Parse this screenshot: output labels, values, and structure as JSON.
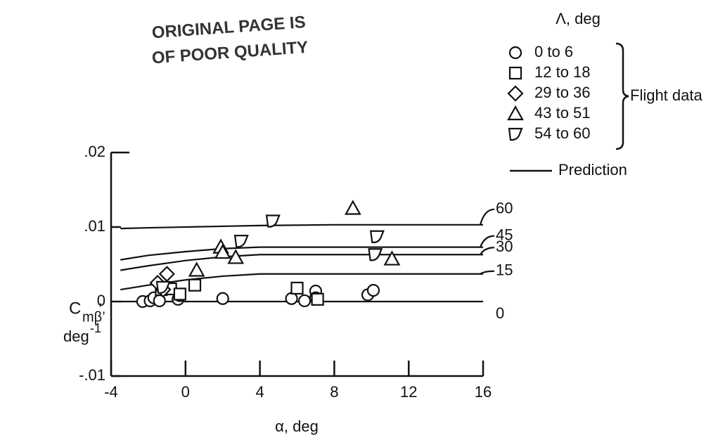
{
  "chart_data": {
    "type": "scatter",
    "annotations": [
      "ORIGINAL PAGE IS",
      "OF POOR QUALITY"
    ],
    "xlabel": "α, deg",
    "ylabel": {
      "symbol": "C",
      "subscript": "mβ",
      "suffix": "′,",
      "unit": "deg",
      "exponent": "-1"
    },
    "xlim": [
      -4,
      16
    ],
    "xticks": [
      -4,
      0,
      4,
      8,
      12,
      16
    ],
    "ylim": [
      -0.01,
      0.02
    ],
    "yticks": [
      {
        "value": -0.01,
        "label": "-.01"
      },
      {
        "value": 0,
        "label": "0"
      },
      {
        "value": 0.01,
        "label": ".01"
      },
      {
        "value": 0.02,
        "label": ".02"
      }
    ],
    "legend_title": "Λ, deg",
    "legend_group_label": "Flight data",
    "series": [
      {
        "name": "0 to 6",
        "marker": "circle",
        "x": [
          -2.3,
          -1.9,
          -1.7,
          -1.4,
          -0.4,
          -0.3,
          2.0,
          5.7,
          6.4,
          7.0,
          7.0,
          9.8,
          10.1
        ],
        "values": [
          0.0,
          0.0001,
          0.0005,
          0.0001,
          0.0003,
          0.0008,
          0.0004,
          0.0004,
          0.0001,
          0.0014,
          0.0005,
          0.0009,
          0.0015
        ]
      },
      {
        "name": "12 to 18",
        "marker": "square",
        "x": [
          -1.3,
          -0.8,
          -0.3,
          0.5,
          6.0,
          7.1
        ],
        "values": [
          0.0016,
          0.0017,
          0.001,
          0.0022,
          0.0018,
          0.0003
        ]
      },
      {
        "name": "29 to 36",
        "marker": "diamond",
        "x": [
          -1.5,
          -1.0,
          -1.2
        ],
        "values": [
          0.0025,
          0.0037,
          0.0016
        ]
      },
      {
        "name": "43 to 51",
        "marker": "triangle",
        "x": [
          0.6,
          1.9,
          2.0,
          2.7,
          9.0,
          11.1
        ],
        "values": [
          0.0042,
          0.0073,
          0.0066,
          0.0059,
          0.0125,
          0.0057
        ]
      },
      {
        "name": "54 to 60",
        "marker": "dshape",
        "x": [
          4.7,
          3.0,
          10.3,
          10.2,
          -1.2
        ],
        "values": [
          0.0108,
          0.0081,
          0.0087,
          0.0063,
          0.0019
        ]
      }
    ],
    "prediction": {
      "name": "Prediction",
      "x": [
        -3.5,
        -2,
        0,
        2,
        4,
        8,
        12,
        16
      ],
      "lines": [
        {
          "name": "60",
          "values": [
            0.0098,
            0.0099,
            0.01,
            0.0101,
            0.0102,
            0.0103,
            0.0103,
            0.0103
          ]
        },
        {
          "name": "45",
          "values": [
            0.0056,
            0.0062,
            0.0067,
            0.0071,
            0.0073,
            0.0073,
            0.0073,
            0.0073
          ]
        },
        {
          "name": "30",
          "values": [
            0.0042,
            0.0048,
            0.0055,
            0.006,
            0.0063,
            0.0063,
            0.0063,
            0.0063
          ]
        },
        {
          "name": "15",
          "values": [
            0.0016,
            0.0022,
            0.0029,
            0.0034,
            0.0037,
            0.0037,
            0.0037,
            0.0037
          ]
        },
        {
          "name": "0",
          "values": [
            0,
            0,
            0,
            0,
            0,
            0,
            0,
            0
          ]
        }
      ]
    }
  }
}
